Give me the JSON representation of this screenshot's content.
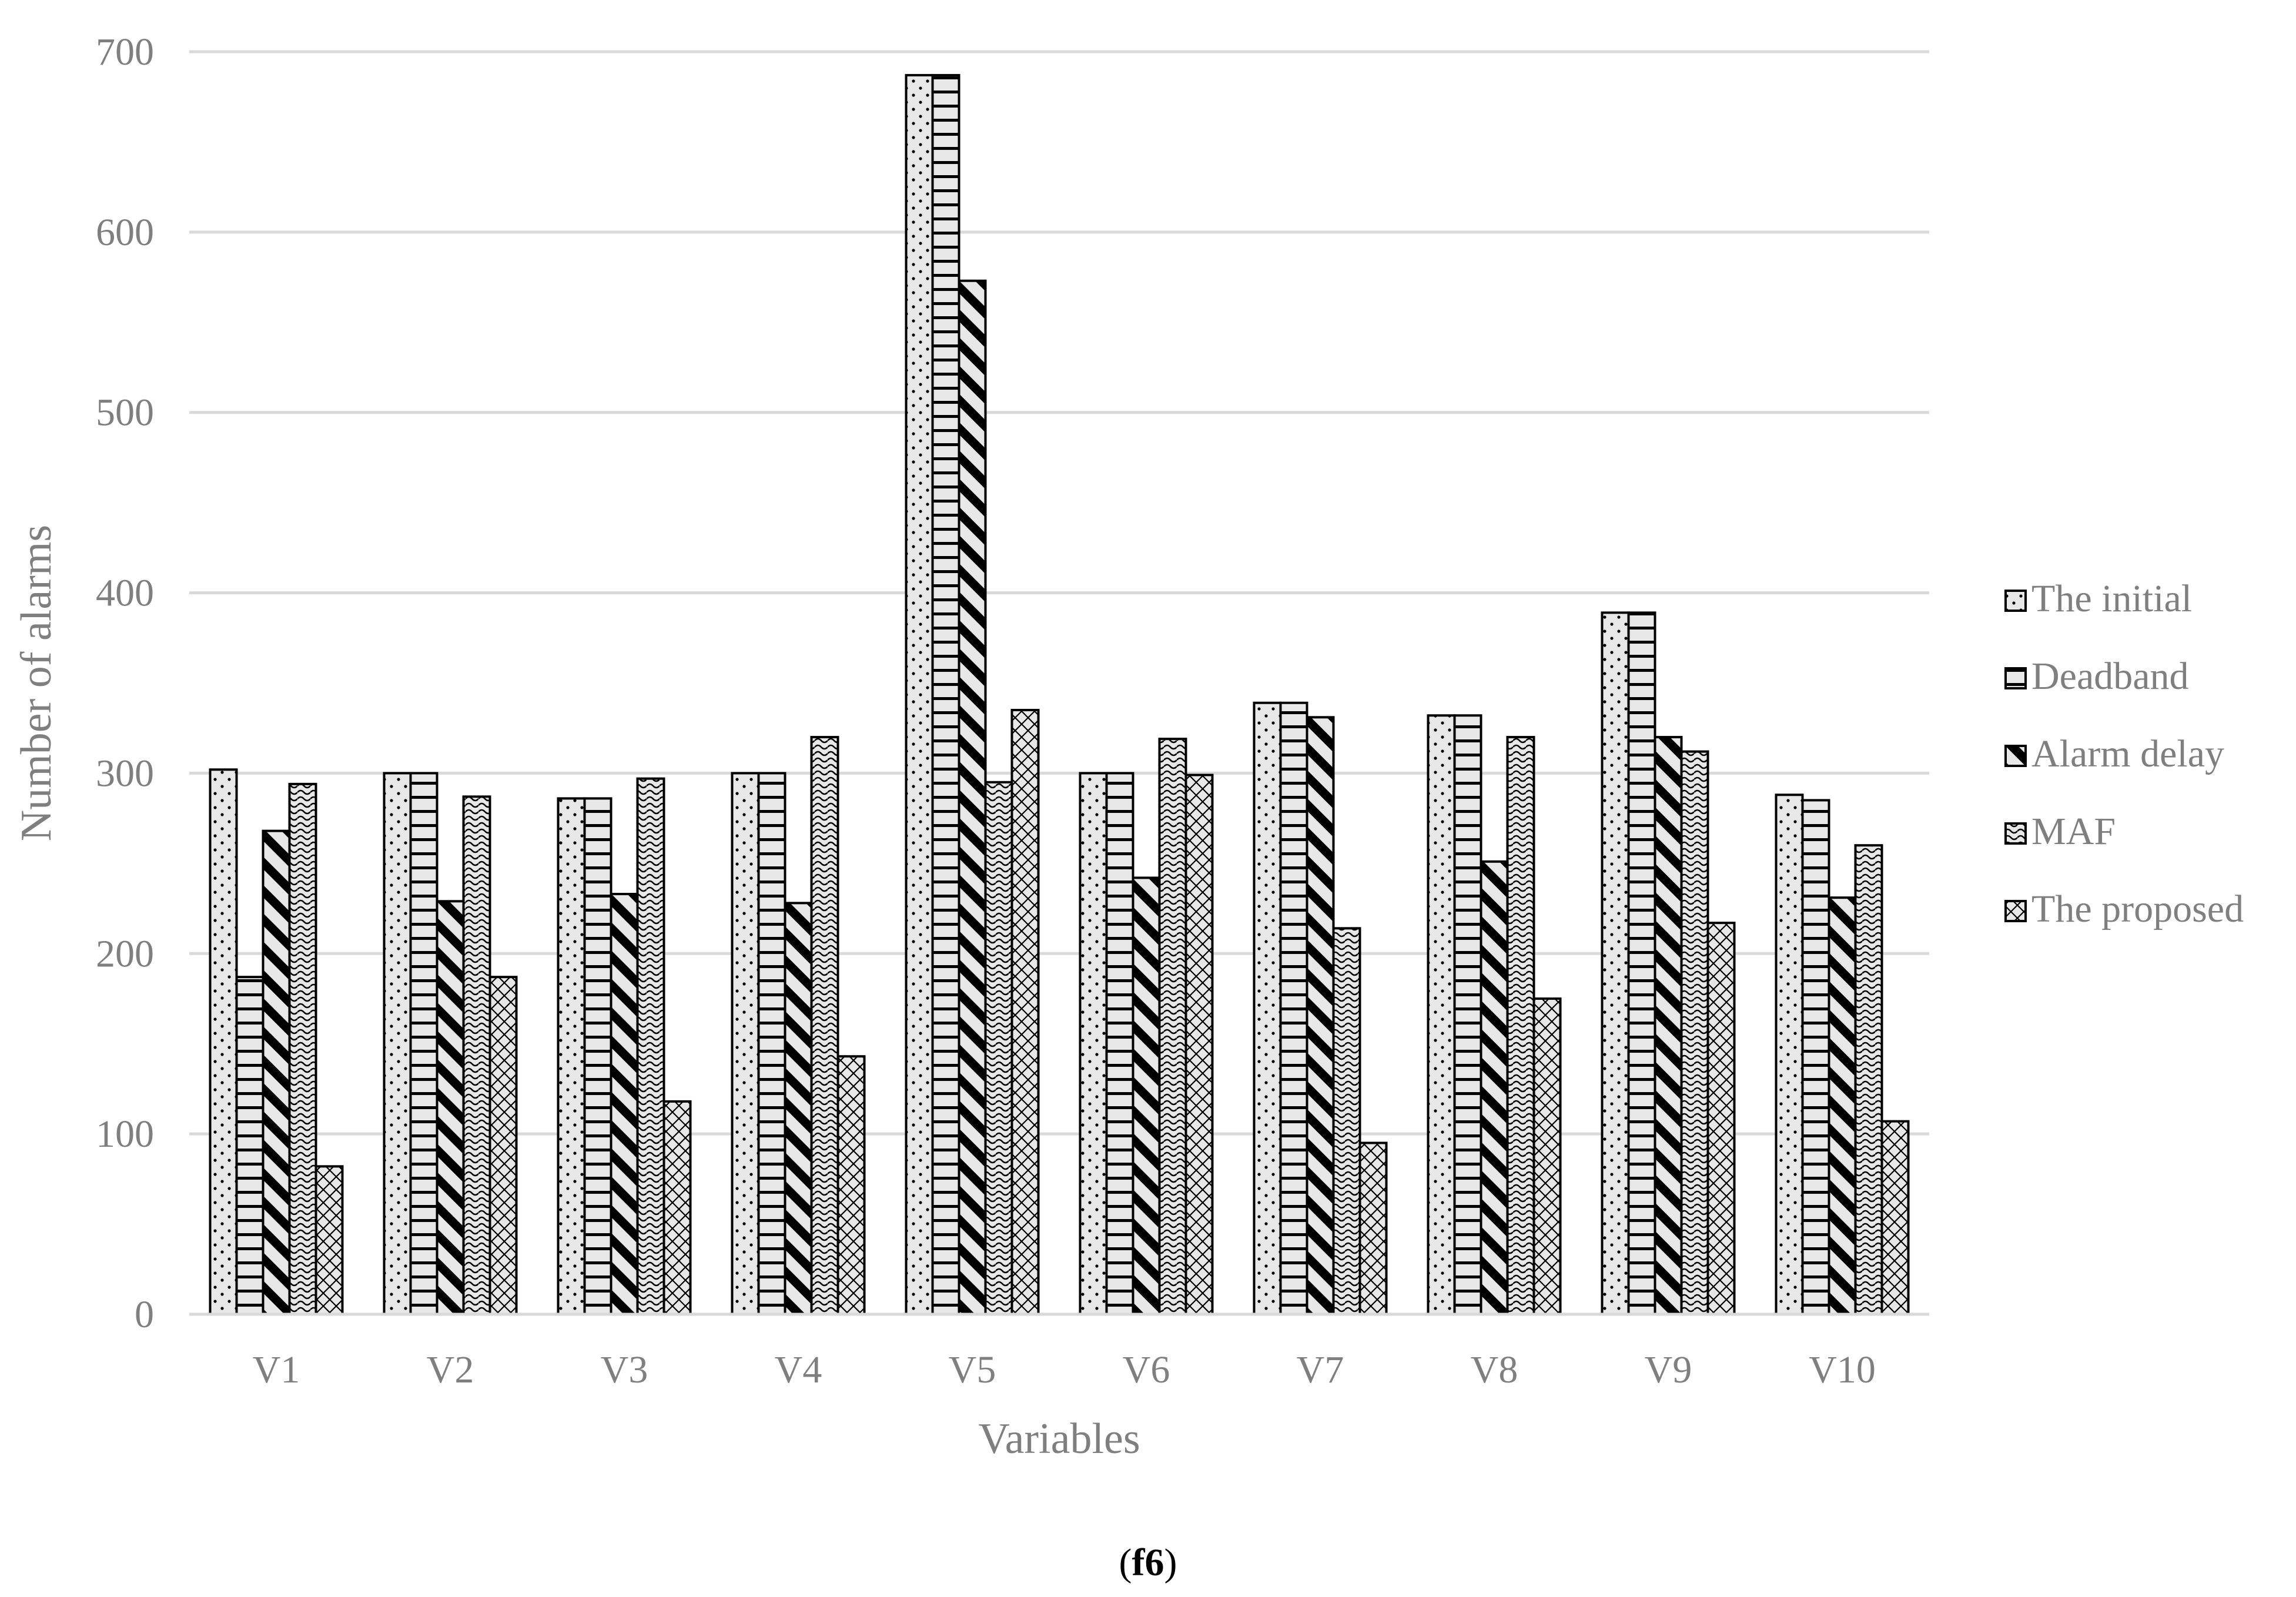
{
  "chart_data": {
    "type": "bar",
    "categories": [
      "V1",
      "V2",
      "V3",
      "V4",
      "V5",
      "V6",
      "V7",
      "V8",
      "V9",
      "V10"
    ],
    "series": [
      {
        "name": "The initial",
        "pattern": "dots",
        "values": [
          302,
          300,
          286,
          300,
          687,
          300,
          339,
          332,
          389,
          288
        ]
      },
      {
        "name": "Deadband",
        "pattern": "hlines",
        "values": [
          187,
          300,
          286,
          300,
          687,
          300,
          339,
          332,
          389,
          285
        ]
      },
      {
        "name": "Alarm delay",
        "pattern": "diagonal",
        "values": [
          268,
          229,
          233,
          228,
          573,
          242,
          331,
          251,
          320,
          231
        ]
      },
      {
        "name": "MAF",
        "pattern": "waves",
        "values": [
          294,
          287,
          297,
          320,
          295,
          319,
          214,
          320,
          312,
          260
        ]
      },
      {
        "name": "The proposed",
        "pattern": "crosshatch",
        "values": [
          82,
          187,
          118,
          143,
          335,
          299,
          95,
          175,
          217,
          107
        ]
      }
    ],
    "title": "",
    "xlabel": "Variables",
    "ylabel": "Number of alarms",
    "ylim": [
      0,
      700
    ],
    "yticks": [
      0,
      100,
      200,
      300,
      400,
      500,
      600,
      700
    ],
    "grid": true,
    "legend_position": "right"
  },
  "caption": {
    "open": "(",
    "label": "f6",
    "close": ")"
  },
  "colors": {
    "grid": "#d9d9d9",
    "axis_text": "#7f7f7f",
    "bar_fill": "#e8e8e8",
    "bar_stroke": "#000000"
  }
}
